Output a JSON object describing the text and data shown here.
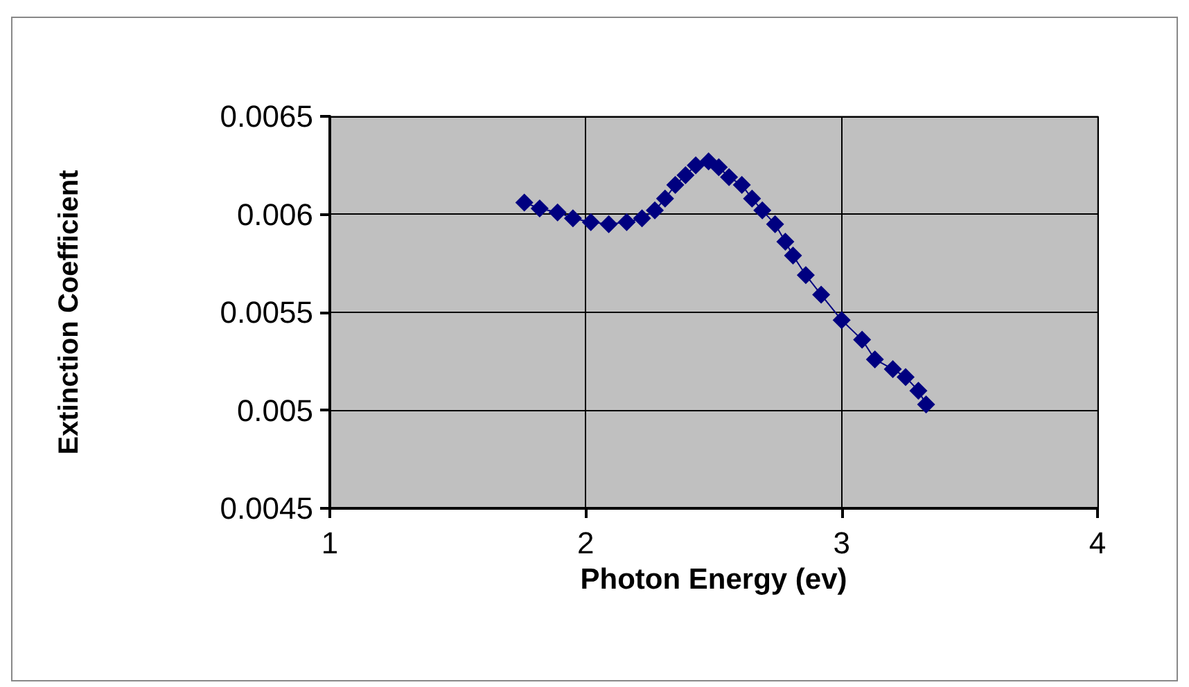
{
  "chart_data": {
    "type": "line",
    "xlabel": "Photon Energy (ev)",
    "ylabel": "Extinction Coefficient",
    "x": [
      1.76,
      1.82,
      1.89,
      1.95,
      2.02,
      2.09,
      2.16,
      2.22,
      2.27,
      2.31,
      2.35,
      2.39,
      2.43,
      2.48,
      2.52,
      2.56,
      2.61,
      2.65,
      2.69,
      2.74,
      2.78,
      2.81,
      2.86,
      2.92,
      3.0,
      3.08,
      3.13,
      3.2,
      3.25,
      3.3,
      3.33
    ],
    "series": [
      {
        "color": "#000080",
        "values": [
          0.00606,
          0.00603,
          0.00601,
          0.00598,
          0.00596,
          0.00595,
          0.00596,
          0.00598,
          0.00602,
          0.00608,
          0.00615,
          0.0062,
          0.00625,
          0.00627,
          0.00624,
          0.00619,
          0.00615,
          0.00608,
          0.00602,
          0.00595,
          0.00586,
          0.00579,
          0.00569,
          0.00559,
          0.00546,
          0.00536,
          0.00526,
          0.00521,
          0.00517,
          0.0051,
          0.00503
        ]
      }
    ],
    "xlim": [
      1,
      4
    ],
    "xticks": [
      1,
      2,
      3,
      4
    ],
    "ylim": [
      0.0045,
      0.0065
    ],
    "yticks": [
      0.0045,
      0.005,
      0.0055,
      0.006,
      0.0065
    ],
    "grid": true,
    "marker": "diamond",
    "line_style": "solid"
  }
}
